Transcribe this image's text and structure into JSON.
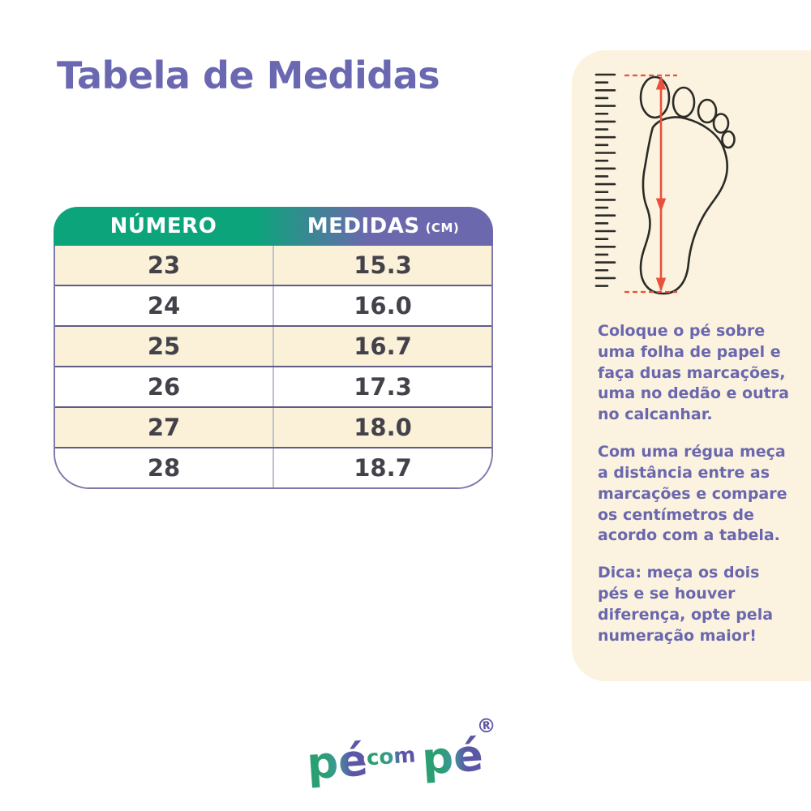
{
  "page": {
    "title": "Tabela de Medidas"
  },
  "size_table": {
    "col1_header": "NÚMERO",
    "col2_header": "MEDIDAS",
    "col2_unit": "(CM)",
    "rows": [
      {
        "numero": "23",
        "medida": "15.3"
      },
      {
        "numero": "24",
        "medida": "16.0"
      },
      {
        "numero": "25",
        "medida": "16.7"
      },
      {
        "numero": "26",
        "medida": "17.3"
      },
      {
        "numero": "27",
        "medida": "18.0"
      },
      {
        "numero": "28",
        "medida": "18.7"
      }
    ]
  },
  "instructions": {
    "paragraph1": "Coloque o pé sobre uma folha de papel e faça duas marcações, uma no dedão e outra no calcanhar.",
    "paragraph2": "Com uma régua meça a distância entre as marcações e compare os centímetros de acordo com a tabela.",
    "tip_label": "Dica:",
    "tip_text": "meça os dois pés e se houver diferença, opte pela numeração maior!"
  },
  "logo": {
    "word1": "pé",
    "word2": "com",
    "word3": "pé",
    "registered_mark": "®"
  },
  "colors": {
    "title_purple": "#6A68B0",
    "header_green": "#0CA47B",
    "header_purple": "#6C68AE",
    "row_cream": "#FBF1D8",
    "panel_cream": "#FBF3DF",
    "text_purple": "#6A67AE",
    "cell_text": "#43424A",
    "table_border": "#7D7AAB",
    "arrow_red": "#E8513D",
    "foot_outline": "#2B2B28",
    "logo_green": "#2B9F74",
    "logo_purple": "#5C56A6"
  }
}
